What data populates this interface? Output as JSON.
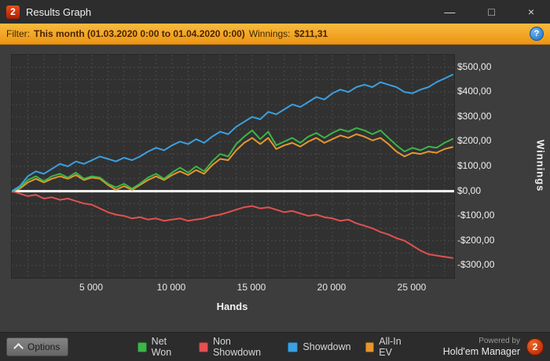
{
  "window": {
    "title": "Results Graph",
    "logo_text": "2",
    "controls": {
      "minimize": "—",
      "maximize": "□",
      "close": "×"
    }
  },
  "filter": {
    "label": "Filter:",
    "range": "This month (01.03.2020 0:00 to 01.04.2020 0:00)",
    "winnings_label": "Winnings:",
    "winnings_value": "$211,31",
    "help": "?"
  },
  "chart_data": {
    "type": "line",
    "xlabel": "Hands",
    "ylabel": "Winnings",
    "xlim": [
      0,
      27600
    ],
    "ylim": [
      -350,
      550
    ],
    "x_start": 0,
    "x_step": 500,
    "x_ticks": [
      5000,
      10000,
      15000,
      20000,
      25000
    ],
    "x_tick_labels": [
      "5 000",
      "10 000",
      "15 000",
      "20 000",
      "25 000"
    ],
    "y_ticks": [
      500,
      400,
      300,
      200,
      100,
      0,
      -100,
      -200,
      -300
    ],
    "y_tick_labels": [
      "$500,00",
      "$400,00",
      "$300,00",
      "$200,00",
      "$100,00",
      "$0,00",
      "-$100,00",
      "-$200,00",
      "-$300,00"
    ],
    "grid": {
      "x_step": 1000,
      "y_step": 50,
      "color": "#4a4a4a"
    },
    "zero_line": {
      "value": 0,
      "color": "#ffffff",
      "width": 3
    },
    "draw_order": [
      "Non Showdown",
      "All-In EV",
      "Net Won",
      "Showdown"
    ],
    "legend_order": [
      "Net Won",
      "Non Showdown",
      "Showdown",
      "All-In EV"
    ],
    "series": [
      {
        "name": "Net Won",
        "color": "#3cb549",
        "values": [
          0,
          15,
          45,
          60,
          40,
          60,
          70,
          55,
          75,
          50,
          60,
          55,
          30,
          15,
          30,
          10,
          30,
          55,
          70,
          50,
          75,
          95,
          75,
          100,
          80,
          120,
          150,
          140,
          190,
          220,
          245,
          210,
          240,
          185,
          200,
          215,
          195,
          220,
          235,
          215,
          235,
          250,
          240,
          255,
          245,
          230,
          245,
          215,
          185,
          160,
          175,
          165,
          180,
          175,
          195,
          211
        ]
      },
      {
        "name": "Non Showdown",
        "color": "#e35050",
        "values": [
          0,
          -10,
          -20,
          -15,
          -30,
          -25,
          -35,
          -30,
          -40,
          -50,
          -55,
          -70,
          -85,
          -95,
          -100,
          -110,
          -105,
          -115,
          -110,
          -120,
          -115,
          -110,
          -120,
          -115,
          -110,
          -100,
          -95,
          -85,
          -75,
          -65,
          -60,
          -70,
          -65,
          -75,
          -85,
          -80,
          -90,
          -100,
          -95,
          -105,
          -110,
          -120,
          -115,
          -130,
          -140,
          -150,
          -165,
          -175,
          -190,
          -200,
          -220,
          -240,
          -255,
          -260,
          -265,
          -270
        ]
      },
      {
        "name": "Showdown",
        "color": "#3b9fe0",
        "values": [
          0,
          20,
          60,
          80,
          70,
          90,
          110,
          100,
          120,
          110,
          125,
          140,
          130,
          120,
          135,
          125,
          140,
          160,
          175,
          165,
          185,
          200,
          190,
          210,
          195,
          220,
          240,
          230,
          260,
          280,
          300,
          290,
          320,
          310,
          330,
          350,
          340,
          360,
          380,
          370,
          395,
          410,
          400,
          420,
          430,
          420,
          440,
          430,
          420,
          400,
          395,
          410,
          420,
          440,
          455,
          470
        ]
      },
      {
        "name": "All-In EV",
        "color": "#e6962e",
        "values": [
          0,
          10,
          35,
          50,
          35,
          50,
          60,
          50,
          65,
          45,
          55,
          50,
          25,
          5,
          20,
          5,
          25,
          45,
          60,
          45,
          65,
          80,
          65,
          85,
          70,
          105,
          130,
          125,
          165,
          195,
          215,
          190,
          215,
          170,
          185,
          195,
          180,
          200,
          215,
          195,
          210,
          225,
          215,
          230,
          220,
          205,
          215,
          190,
          160,
          140,
          155,
          150,
          160,
          155,
          170,
          178
        ]
      }
    ]
  },
  "footer": {
    "options_label": "Options",
    "powered_by": "Powered by",
    "brand": "Hold'em Manager",
    "brand_logo": "2"
  }
}
